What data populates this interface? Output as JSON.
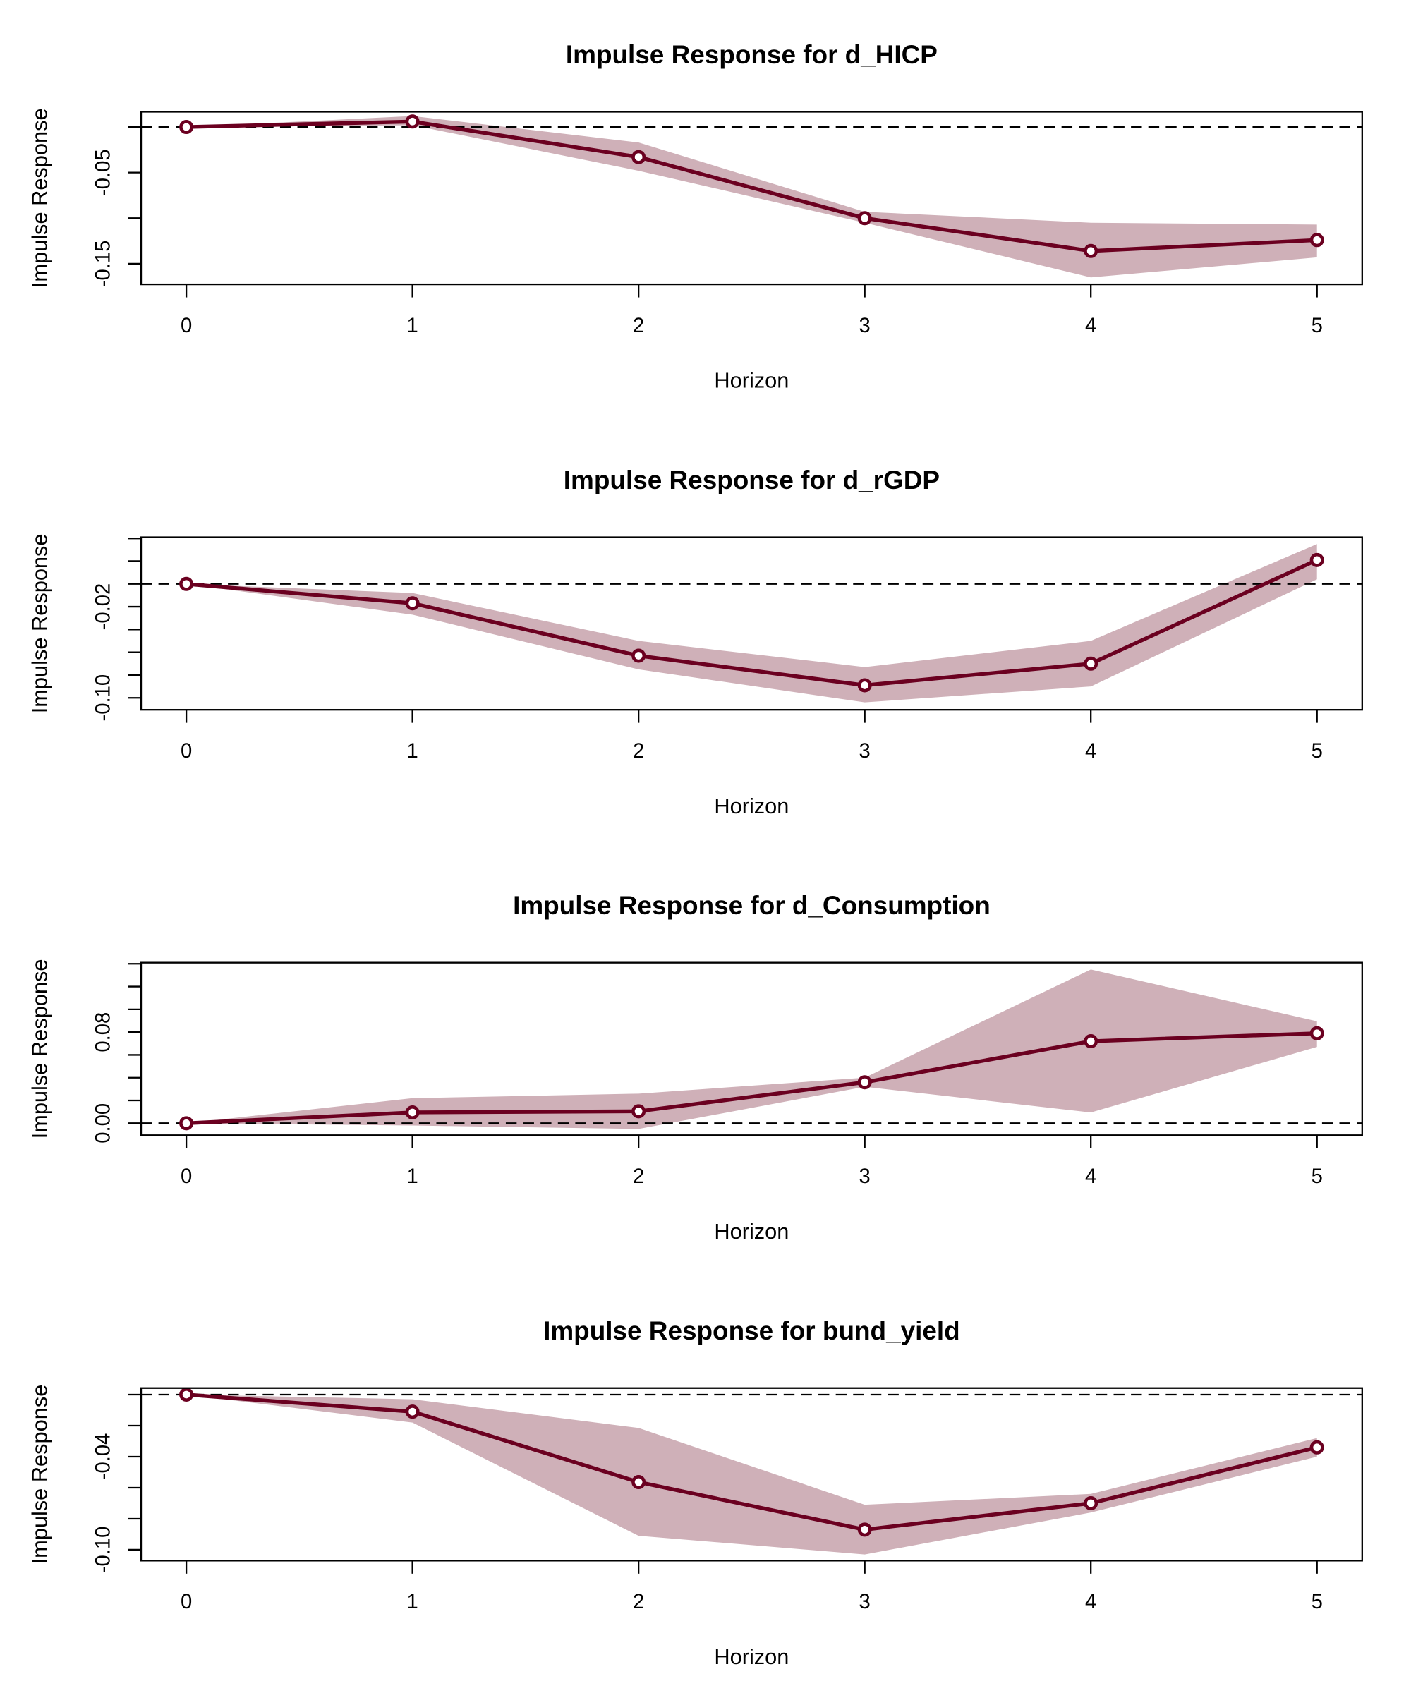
{
  "chart_data": [
    {
      "type": "line",
      "title": "Impulse Response for d_HICP",
      "xlabel": "Horizon",
      "ylabel": "Impulse Response",
      "x": [
        0,
        1,
        2,
        3,
        4,
        5
      ],
      "xlim": [
        -0.2,
        5.2
      ],
      "xticks": [
        0,
        1,
        2,
        3,
        4,
        5
      ],
      "ylim": [
        -0.1726,
        0.0167
      ],
      "yticks": [
        -0.15,
        -0.05
      ],
      "yticks_unlabeled": [
        -0.1,
        0
      ],
      "hline": 0,
      "color": "#6b0020",
      "band_color": "#cfb0b8",
      "values": [
        0,
        0.006,
        -0.033,
        -0.1,
        -0.136,
        -0.124
      ],
      "upper": [
        0,
        0.012,
        -0.017,
        -0.093,
        -0.105,
        -0.107
      ],
      "lower": [
        0,
        0.002,
        -0.048,
        -0.105,
        -0.165,
        -0.143
      ]
    },
    {
      "type": "line",
      "title": "Impulse Response for d_rGDP",
      "xlabel": "Horizon",
      "ylabel": "Impulse Response",
      "x": [
        0,
        1,
        2,
        3,
        4,
        5
      ],
      "xlim": [
        -0.2,
        5.2
      ],
      "xticks": [
        0,
        1,
        2,
        3,
        4,
        5
      ],
      "ylim": [
        -0.1105,
        0.041
      ],
      "yticks": [
        {
          "value": -0.1,
          "label": "-0.10"
        },
        -0.02
      ],
      "yticks_unlabeled": [
        -0.08,
        -0.06,
        -0.04,
        0,
        0.02,
        0.04
      ],
      "hline": 0,
      "color": "#6b0020",
      "band_color": "#cfb0b8",
      "values": [
        0,
        -0.017,
        -0.063,
        -0.089,
        -0.07,
        0.021
      ],
      "upper": [
        0,
        -0.008,
        -0.05,
        -0.073,
        -0.05,
        0.035
      ],
      "lower": [
        0,
        -0.027,
        -0.075,
        -0.104,
        -0.09,
        0.004
      ]
    },
    {
      "type": "line",
      "title": "Impulse Response for d_Consumption",
      "xlabel": "Horizon",
      "ylabel": "Impulse Response",
      "x": [
        0,
        1,
        2,
        3,
        4,
        5
      ],
      "xlim": [
        -0.2,
        5.2
      ],
      "xticks": [
        0,
        1,
        2,
        3,
        4,
        5
      ],
      "ylim": [
        -0.0105,
        0.141
      ],
      "yticks": [
        {
          "value": 0,
          "label": "0.00"
        },
        0.08
      ],
      "yticks_unlabeled": [
        0.02,
        0.04,
        0.06,
        0.1,
        0.12,
        0.14
      ],
      "hline": 0,
      "color": "#6b0020",
      "band_color": "#cfb0b8",
      "values": [
        0,
        0.0095,
        0.0105,
        0.036,
        0.072,
        0.079
      ],
      "upper": [
        0,
        0.022,
        0.026,
        0.04,
        0.135,
        0.0895
      ],
      "lower": [
        0,
        -0.002,
        -0.005,
        0.032,
        0.0095,
        0.067
      ]
    },
    {
      "type": "line",
      "title": "Impulse Response for bund_yield",
      "xlabel": "Horizon",
      "ylabel": "Impulse Response",
      "x": [
        0,
        1,
        2,
        3,
        4,
        5
      ],
      "xlim": [
        -0.2,
        5.2
      ],
      "xticks": [
        0,
        1,
        2,
        3,
        4,
        5
      ],
      "ylim": [
        -0.107,
        0.0042
      ],
      "yticks": [
        {
          "value": -0.1,
          "label": "-0.10"
        },
        -0.04
      ],
      "yticks_unlabeled": [
        -0.08,
        -0.06,
        -0.02,
        0
      ],
      "hline": 0,
      "color": "#6b0020",
      "band_color": "#cfb0b8",
      "values": [
        0,
        -0.011,
        -0.0564,
        -0.087,
        -0.07,
        -0.034
      ],
      "upper": [
        0,
        -0.003,
        -0.0215,
        -0.071,
        -0.064,
        -0.028
      ],
      "lower": [
        0,
        -0.018,
        -0.091,
        -0.103,
        -0.076,
        -0.04
      ]
    }
  ]
}
